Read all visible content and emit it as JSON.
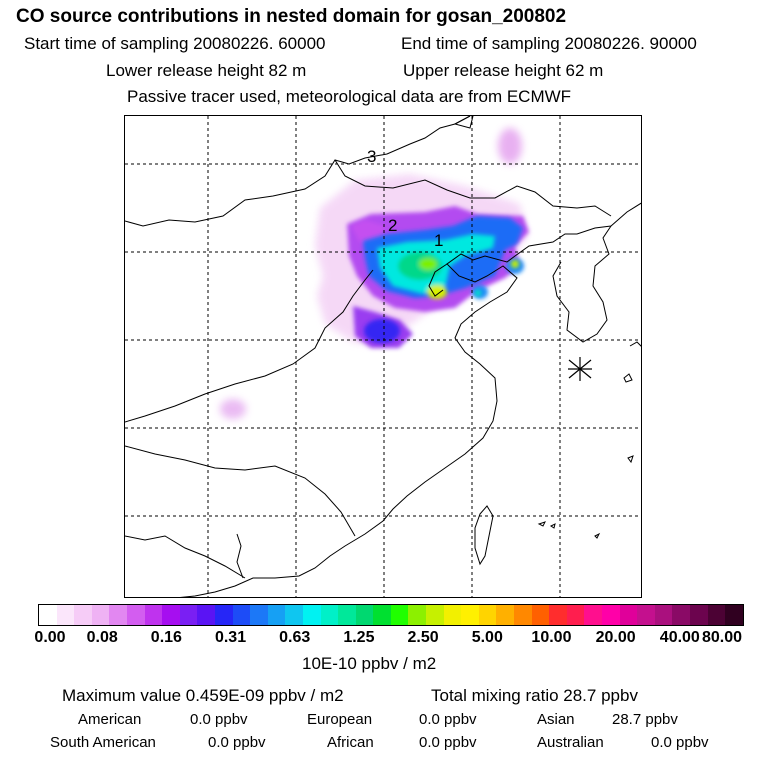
{
  "header": {
    "title": "CO  source contributions in nested domain for gosan_200802",
    "start_label": "Start time of sampling 20080226. 60000",
    "end_label": "End time of sampling 20080226. 90000",
    "lower_label": "Lower release height   82 m",
    "upper_label": "Upper release height   62 m",
    "tracer_label": "Passive tracer used, meteorological data are from ECMWF"
  },
  "map": {
    "labels": {
      "one": "1",
      "two": "2",
      "three": "3"
    },
    "receptor_marker": "asterisk-star"
  },
  "colorbar": {
    "colors": [
      "#ffffff",
      "#fbe6fb",
      "#f6ccf7",
      "#efb2f4",
      "#e287f1",
      "#d35df0",
      "#bf33ee",
      "#a60ef0",
      "#7a1ff3",
      "#5a14f4",
      "#2626f7",
      "#1d4cf7",
      "#1c78f7",
      "#16a0f4",
      "#0fc6f0",
      "#00f2f2",
      "#00f0c8",
      "#00e89a",
      "#00d870",
      "#00e030",
      "#20ff00",
      "#8cf000",
      "#c6f000",
      "#f2f000",
      "#fff000",
      "#ffd400",
      "#ffb000",
      "#ff8800",
      "#ff6000",
      "#ff2d2d",
      "#ff1e4e",
      "#ff0f8e",
      "#ff00a8",
      "#e0009a",
      "#c4108e",
      "#aa107e",
      "#8a0a66",
      "#6c044e",
      "#4c0234",
      "#300020"
    ],
    "tick_labels": [
      "0.00",
      "0.08",
      "0.16",
      "0.31",
      "0.63",
      "1.25",
      "2.50",
      "5.00",
      "10.00",
      "20.00",
      "40.00",
      "80.00"
    ],
    "unit": "10E-10 ppbv / m2"
  },
  "stats": {
    "max_value": "Maximum value  0.459E-09 ppbv / m2",
    "total": "Total mixing ratio       28.7 ppbv",
    "american_label": "American",
    "american_value": "0.0 ppbv",
    "european_label": "European",
    "european_value": "0.0 ppbv",
    "asian_label": "Asian",
    "asian_value": "28.7 ppbv",
    "south_american_label": "South American",
    "south_american_value": "0.0 ppbv",
    "african_label": "African",
    "african_value": "0.0 ppbv",
    "australian_label": "Australian",
    "australian_value": "0.0 ppbv"
  }
}
